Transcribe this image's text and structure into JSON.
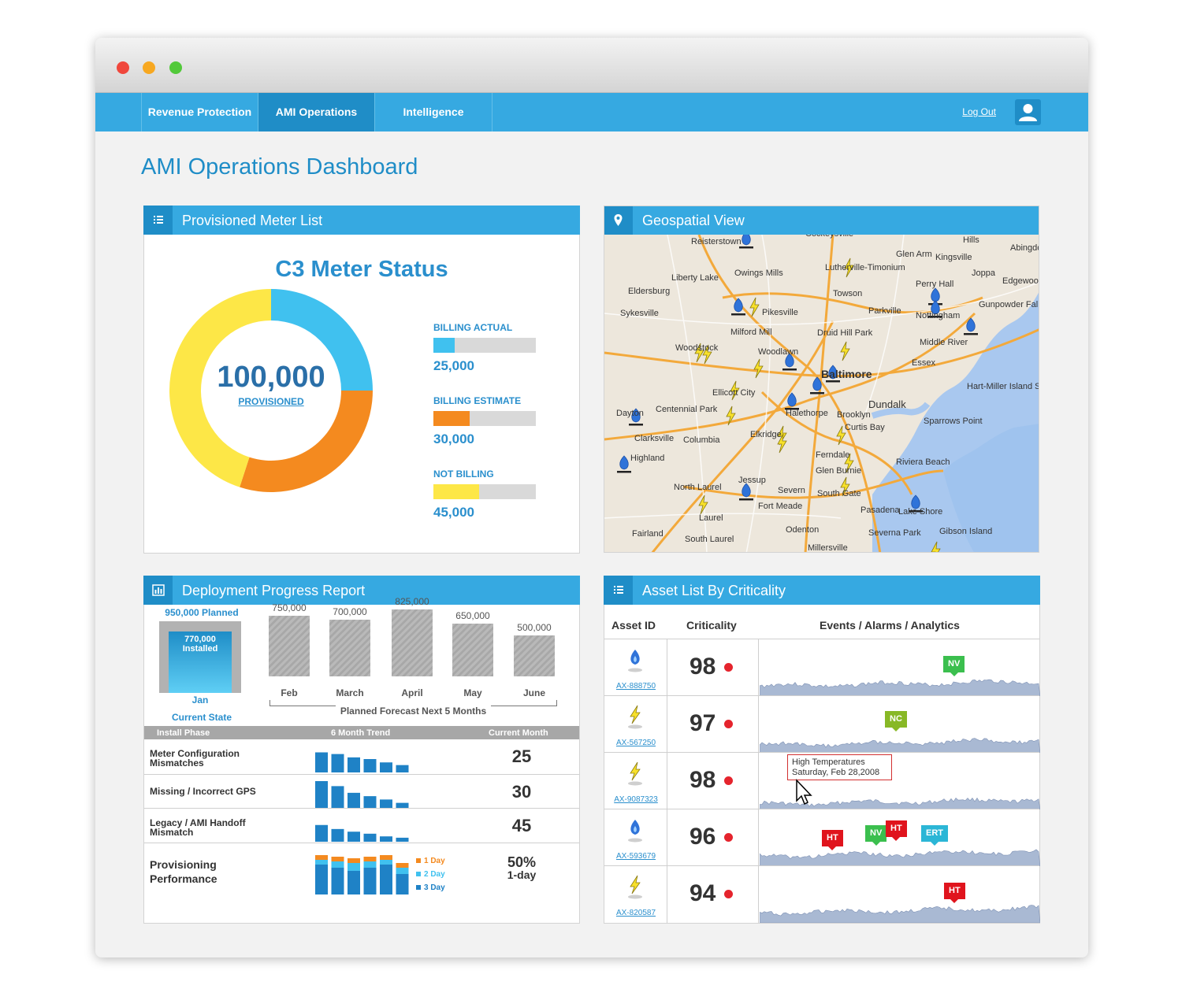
{
  "nav": {
    "tabs": [
      {
        "label": "Revenue Protection"
      },
      {
        "label": "AMI Operations"
      },
      {
        "label": "Intelligence"
      }
    ],
    "active_tab": "AMI Operations",
    "logout": "Log Out"
  },
  "page": {
    "title": "AMI Operations Dashboard"
  },
  "meter_panel": {
    "title": "Provisioned Meter List",
    "chart_title": "C3 Meter Status",
    "total": "100,000",
    "total_label": "PROVISIONED",
    "legend": [
      {
        "label": "BILLING ACTUAL",
        "value": "25,000",
        "color": "#40c1ef"
      },
      {
        "label": "BILLING ESTIMATE",
        "value": "30,000",
        "color": "#f48a1f"
      },
      {
        "label": "NOT BILLING",
        "value": "45,000",
        "color": "#fde747"
      }
    ]
  },
  "map_panel": {
    "title": "Geospatial View",
    "places": [
      "Reisterstown",
      "Cockeysville",
      "Hills",
      "Glen Arm",
      "Kingsville",
      "Lutherville-Timonium",
      "Joppa",
      "Owings Mills",
      "Liberty Lake",
      "Perry Hall",
      "Edgewood",
      "Eldersburg",
      "Towson",
      "Gunpowder Falls State Park",
      "Pikesville",
      "Parkville",
      "Nottingham",
      "Sykesville",
      "Milford Mill",
      "Middle River",
      "Druid Hill Park",
      "Woodstock",
      "Woodlawn",
      "Essex",
      "Baltimore",
      "Ellicott City",
      "Hart-Miller Island State Park",
      "Centennial Park",
      "Dundalk",
      "Dayton",
      "Halethorpe",
      "Brooklyn",
      "Clarksville",
      "Columbia",
      "Curtis Bay",
      "Sparrows Point",
      "Elkridge",
      "Highland",
      "Ferndale",
      "Riviera Beach",
      "Glen Burnie",
      "Jessup",
      "North Laurel",
      "Severn",
      "South Gate",
      "Fort Meade",
      "Pasadena",
      "Lake Shore",
      "Laurel",
      "Fairland",
      "Odenton",
      "Severna Park",
      "Gibson Island",
      "South Laurel",
      "Millersville",
      "Abingdon"
    ]
  },
  "deploy_panel": {
    "title": "Deployment Progress Report",
    "current": {
      "planned": "950,000 Planned",
      "installed": "770,000 Installed",
      "month": "Jan",
      "label": "Current State",
      "planned_value": 950000,
      "installed_value": 770000
    },
    "forecast": [
      {
        "month": "Feb",
        "value": 750000,
        "label": "750,000"
      },
      {
        "month": "March",
        "value": 700000,
        "label": "700,000"
      },
      {
        "month": "April",
        "value": 825000,
        "label": "825,000"
      },
      {
        "month": "May",
        "value": 650000,
        "label": "650,000"
      },
      {
        "month": "June",
        "value": 500000,
        "label": "500,000"
      }
    ],
    "forecast_label": "Planned Forecast Next 5 Months",
    "table_headers": {
      "phase": "Install Phase",
      "trend": "6 Month Trend",
      "current": "Current Month"
    },
    "rows": [
      {
        "name_l1": "Meter Configuration",
        "name_l2": "Mismatches",
        "value": "25",
        "trend": [
          6,
          5.5,
          4.5,
          4,
          3,
          2.2
        ]
      },
      {
        "name_l1": "Missing / Incorrect GPS",
        "name_l2": "",
        "value": "30",
        "trend": [
          8,
          6.5,
          4.5,
          3.5,
          2.5,
          1.5
        ]
      },
      {
        "name_l1": "Legacy / AMI Handoff",
        "name_l2": "Mismatch",
        "value": "45",
        "trend": [
          5,
          3.8,
          3,
          2.4,
          1.6,
          1.2
        ]
      }
    ],
    "performance": {
      "name_l1": "Provisioning",
      "name_l2": "Performance",
      "value": "50%",
      "value_sub": "1-day",
      "legend": [
        {
          "label": "1 Day",
          "color": "#f48a1f"
        },
        {
          "label": "2 Day",
          "color": "#40c1ef"
        },
        {
          "label": "3 Day",
          "color": "#1f82c6"
        }
      ]
    }
  },
  "asset_panel": {
    "title": "Asset List By Criticality",
    "headers": {
      "id": "Asset ID",
      "criticality": "Criticality",
      "events": "Events / Alarms / Analytics"
    },
    "rows": [
      {
        "id": "AX-888750",
        "type": "gas-meter-icon",
        "criticality": "98",
        "tags": [
          {
            "text": "NV",
            "kind": "nv"
          }
        ]
      },
      {
        "id": "AX-567250",
        "type": "electric-meter-icon",
        "criticality": "97",
        "tags": [
          {
            "text": "NC",
            "kind": "nc"
          }
        ]
      },
      {
        "id": "AX-9087323",
        "type": "electric-meter-icon",
        "criticality": "98",
        "tags": [],
        "tooltip_l1": "High Temperatures",
        "tooltip_l2": "Saturday, Feb 28,2008"
      },
      {
        "id": "AX-593679",
        "type": "gas-meter-icon",
        "criticality": "96",
        "tags": [
          {
            "text": "HT",
            "kind": "ht"
          },
          {
            "text": "NV",
            "kind": "nv"
          },
          {
            "text": "HT",
            "kind": "ht"
          },
          {
            "text": "ERT",
            "kind": "ert"
          }
        ]
      },
      {
        "id": "AX-820587",
        "type": "electric-meter-icon",
        "criticality": "94",
        "tags": [
          {
            "text": "HT",
            "kind": "ht"
          }
        ]
      }
    ]
  }
}
